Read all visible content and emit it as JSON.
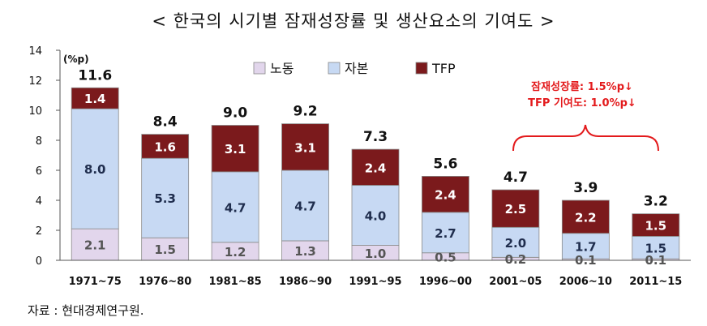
{
  "title": "< 한국의 시기별 잠재성장률 및 생산요소의 기여도 >",
  "source": "자료 : 현대경제연구원.",
  "chart_data": {
    "type": "bar",
    "stacked": true,
    "unit_label": "(%p)",
    "ylim": [
      0,
      14
    ],
    "yticks": [
      0,
      2,
      4,
      6,
      8,
      10,
      12,
      14
    ],
    "categories": [
      "1971~75",
      "1976~80",
      "1981~85",
      "1986~90",
      "1991~95",
      "1996~00",
      "2001~05",
      "2006~10",
      "2011~15"
    ],
    "series": [
      {
        "name": "노동",
        "color": "#e2d6ec",
        "label_color": "#555555",
        "values": [
          2.1,
          1.5,
          1.2,
          1.3,
          1.0,
          0.5,
          0.2,
          0.1,
          0.1
        ]
      },
      {
        "name": "자본",
        "color": "#c7d9f3",
        "label_color": "#1f2d4d",
        "values": [
          8.0,
          5.3,
          4.7,
          4.7,
          4.0,
          2.7,
          2.0,
          1.7,
          1.5
        ]
      },
      {
        "name": "TFP",
        "color": "#7b1a1c",
        "label_color": "#ffffff",
        "values": [
          1.4,
          1.6,
          3.1,
          3.1,
          2.4,
          2.4,
          2.5,
          2.2,
          1.5
        ]
      }
    ],
    "totals": [
      "11.6",
      "8.4",
      "9.0",
      "9.2",
      "7.3",
      "5.6",
      "4.7",
      "3.9",
      "3.2"
    ],
    "annotation": {
      "lines": [
        "잠재성장률: 1.5%p↓",
        "TFP 기여도: 1.0%p↓"
      ],
      "color": "#e31a1c"
    }
  }
}
